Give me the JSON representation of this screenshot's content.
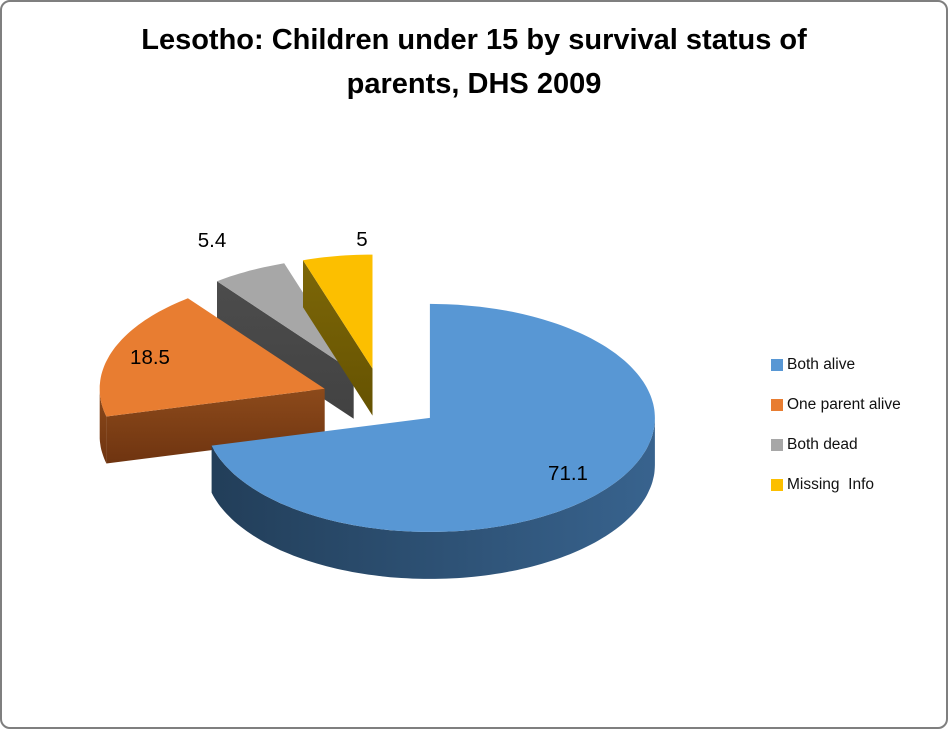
{
  "title": {
    "text": "Lesotho: Children under 15 by survival status of parents, DHS 2009",
    "lines": [
      "Lesotho: Children under 15 by survival status of",
      "parents, DHS 2009"
    ]
  },
  "chart_data": {
    "type": "pie",
    "style": "3d-exploded",
    "title": "Lesotho: Children under 15 by survival status of parents, DHS 2009",
    "unit": "percent",
    "total": 100,
    "start_angle_deg": 0,
    "direction": "clockwise",
    "legend_position": "right",
    "labels_shown": true,
    "slices": [
      {
        "label": "Both alive",
        "value": 71.1,
        "display": "71.1",
        "color": "#5897D4",
        "side_from": "#223E59",
        "side_to": "#38638E"
      },
      {
        "label": "One parent alive",
        "value": 18.5,
        "display": "18.5",
        "color": "#E87D31",
        "side_from": "#8C4A1B",
        "side_to": "#6F3410"
      },
      {
        "label": "Both dead",
        "value": 5.4,
        "display": "5.4",
        "color": "#A7A7A7",
        "side_from": "#4C4C4C",
        "side_to": "#424242"
      },
      {
        "label": "Missing  Info",
        "value": 5,
        "display": "5",
        "color": "#FCBF00",
        "side_from": "#7D6708",
        "side_to": "#655201"
      }
    ]
  },
  "colors": {
    "background": "#FFFFFF",
    "border": "#7F7F7F",
    "title_text": "#000000",
    "label_text": "#000000"
  }
}
